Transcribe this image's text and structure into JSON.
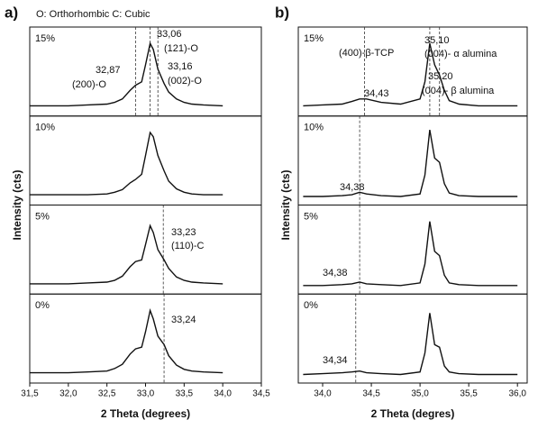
{
  "chart_data": [
    {
      "type": "line",
      "panel": "a)",
      "legend_text": "O: Orthorhombic     C: Cubic",
      "xlabel": "2 Theta (degrees)",
      "ylabel": "Intensity (cts)",
      "color": "#111111",
      "xlim": [
        31.5,
        34.5
      ],
      "ylim": [
        0,
        100
      ],
      "xticks": [
        {
          "value": 31.5,
          "label": "31,5"
        },
        {
          "value": 32.0,
          "label": "32,0"
        },
        {
          "value": 32.5,
          "label": "32,5"
        },
        {
          "value": 33.0,
          "label": "33,0"
        },
        {
          "value": 33.5,
          "label": "33,5"
        },
        {
          "value": 34.0,
          "label": "34,0"
        },
        {
          "value": 34.5,
          "label": "34,5"
        }
      ],
      "x": [
        31.5,
        31.75,
        32.0,
        32.25,
        32.5,
        32.6,
        32.7,
        32.8,
        32.87,
        32.95,
        33.0,
        33.06,
        33.1,
        33.16,
        33.24,
        33.3,
        33.4,
        33.5,
        33.6,
        33.75,
        34.0
      ],
      "series": [
        {
          "name": "15%",
          "values": [
            12,
            12,
            12,
            13,
            14,
            16,
            20,
            30,
            36,
            40,
            60,
            85,
            78,
            55,
            38,
            28,
            20,
            16,
            14,
            13,
            12
          ],
          "peaks": [
            {
              "value": 32.87,
              "label": "32,87",
              "note": "(200)-O"
            },
            {
              "value": 33.06,
              "label": "33,06",
              "note": "(121)-O"
            },
            {
              "value": 33.16,
              "label": "33,16",
              "note": "(002)-O"
            }
          ]
        },
        {
          "name": "10%",
          "values": [
            12,
            12,
            12,
            12,
            13,
            15,
            18,
            26,
            30,
            36,
            58,
            85,
            80,
            58,
            40,
            28,
            19,
            15,
            13,
            12,
            12
          ],
          "peaks": []
        },
        {
          "name": "5%",
          "values": [
            12,
            12,
            12,
            13,
            14,
            16,
            21,
            32,
            38,
            40,
            58,
            80,
            72,
            52,
            40,
            30,
            20,
            16,
            14,
            13,
            12
          ],
          "peaks": [
            {
              "value": 33.23,
              "label": "33,23",
              "note": "(110)-C"
            }
          ]
        },
        {
          "name": "0%",
          "values": [
            12,
            12,
            12,
            13,
            14,
            17,
            22,
            34,
            40,
            42,
            60,
            85,
            75,
            55,
            45,
            32,
            21,
            16,
            14,
            13,
            12
          ],
          "peaks": [
            {
              "value": 33.24,
              "label": "33,24"
            }
          ]
        }
      ]
    },
    {
      "type": "line",
      "panel": "b)",
      "xlabel": "2 Theta (degres)",
      "ylabel": "Intensity (cts)",
      "color": "#111111",
      "xlim": [
        33.75,
        36.1
      ],
      "ylim": [
        0,
        100
      ],
      "xticks": [
        {
          "value": 34.0,
          "label": "34,0"
        },
        {
          "value": 34.5,
          "label": "34,5"
        },
        {
          "value": 35.0,
          "label": "35,0"
        },
        {
          "value": 35.5,
          "label": "35,5"
        },
        {
          "value": 36.0,
          "label": "36,0"
        }
      ],
      "x": [
        33.8,
        34.0,
        34.2,
        34.3,
        34.38,
        34.45,
        34.6,
        34.8,
        35.0,
        35.05,
        35.1,
        35.15,
        35.2,
        35.25,
        35.3,
        35.4,
        35.6,
        35.8,
        36.0
      ],
      "series": [
        {
          "name": "15%",
          "values": [
            12,
            13,
            14,
            17,
            20,
            20,
            16,
            14,
            20,
            40,
            85,
            60,
            48,
            30,
            18,
            14,
            12,
            12,
            12
          ],
          "peaks": [
            {
              "value": 34.43,
              "label": "34,43",
              "note": "(400)-β-TCP"
            },
            {
              "value": 35.1,
              "label": "35,10",
              "note": "(004)- α alumina"
            },
            {
              "value": 35.2,
              "label": "35,20",
              "note": "(004)- β alumina"
            }
          ]
        },
        {
          "name": "10%",
          "values": [
            10,
            10,
            11,
            12,
            15,
            13,
            11,
            10,
            13,
            35,
            88,
            55,
            50,
            25,
            14,
            11,
            10,
            10,
            10
          ],
          "peaks": [
            {
              "value": 34.38,
              "label": "34,38"
            }
          ]
        },
        {
          "name": "5%",
          "values": [
            10,
            10,
            11,
            12,
            14,
            12,
            11,
            10,
            13,
            35,
            85,
            50,
            45,
            22,
            13,
            11,
            10,
            10,
            10
          ],
          "peaks": [
            {
              "value": 34.38,
              "label": "34,38"
            }
          ]
        },
        {
          "name": "0%",
          "values": [
            10,
            11,
            12,
            13,
            14,
            12,
            11,
            10,
            13,
            35,
            82,
            45,
            42,
            20,
            13,
            11,
            10,
            10,
            10
          ],
          "peaks": [
            {
              "value": 34.34,
              "label": "34,34"
            }
          ]
        }
      ]
    }
  ]
}
